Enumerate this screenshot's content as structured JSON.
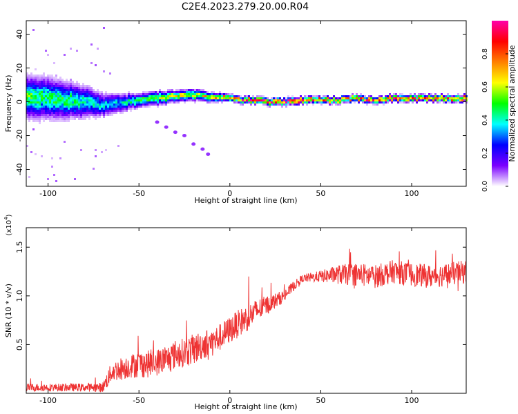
{
  "figure_title": "C2E4.2023.279.20.00.R04",
  "chart_data": [
    {
      "type": "heatmap",
      "title": "",
      "xlabel": "Height of straight line (km)",
      "ylabel": "Frequency (Hz)",
      "xlim": [
        -112,
        130
      ],
      "ylim": [
        -50,
        48
      ],
      "xticks": [
        -100,
        -50,
        0,
        50,
        100
      ],
      "yticks": [
        -40,
        -20,
        0,
        20,
        40
      ],
      "xtick_labels": [
        "-100",
        "-50",
        "0",
        "50",
        "100"
      ],
      "ytick_labels": [
        "-40",
        "-20",
        "0",
        "20",
        "40"
      ],
      "ridge": {
        "x": [
          -110,
          -100,
          -90,
          -80,
          -70,
          -60,
          -50,
          -40,
          -30,
          -20,
          -10,
          0,
          10,
          20,
          30,
          40,
          50,
          60,
          70,
          80,
          90,
          100,
          110,
          120,
          130
        ],
        "freq": [
          3,
          2,
          1,
          0,
          -2,
          -1,
          1,
          2,
          3,
          4,
          3,
          2,
          1,
          0,
          0,
          1,
          1,
          1,
          2,
          1,
          2,
          2,
          2,
          2,
          2
        ],
        "peak_amplitude": [
          0.5,
          0.45,
          0.45,
          0.4,
          0.35,
          0.35,
          0.45,
          0.55,
          0.6,
          0.6,
          0.65,
          0.75,
          0.85,
          0.9,
          0.9,
          0.85,
          0.75,
          0.7,
          0.75,
          0.8,
          0.8,
          0.75,
          0.75,
          0.8,
          0.8
        ],
        "width_hz": [
          18,
          18,
          16,
          14,
          10,
          8,
          6,
          6,
          5,
          5,
          4,
          3,
          3,
          3,
          3,
          3,
          3,
          3,
          3,
          3,
          3,
          3,
          3,
          3,
          3
        ]
      },
      "side_branch": {
        "x": [
          -40,
          -35,
          -30,
          -25,
          -20,
          -15,
          -12
        ],
        "freq": [
          -12,
          -15,
          -18,
          -20,
          -25,
          -28,
          -31
        ],
        "amplitude": 0.1
      },
      "colorbar": {
        "label": "Normalized spectral amplitude",
        "range": [
          0,
          1
        ],
        "ticks": [
          0.0,
          0.2,
          0.4,
          0.6,
          0.8
        ],
        "tick_labels": [
          "0.0",
          "0.2",
          "0.4",
          "0.6",
          "0.8"
        ],
        "colors": [
          "#ffffff",
          "#7b00ff",
          "#0000ff",
          "#00ffff",
          "#00ff00",
          "#ffff00",
          "#ff8000",
          "#ff0000",
          "#ff00aa"
        ]
      }
    },
    {
      "type": "line",
      "title": "",
      "xlabel": "Height of straight line (km)",
      "ylabel": "SNR (10 * v/v)",
      "y_multiplier": "(x10",
      "y_multiplier_exp": "4",
      "y_multiplier_close": ")",
      "xlim": [
        -112,
        130
      ],
      "ylim": [
        0,
        1.7
      ],
      "xticks": [
        -100,
        -50,
        0,
        50,
        100
      ],
      "yticks": [
        0.5,
        1.0,
        1.5
      ],
      "xtick_labels": [
        "-100",
        "-50",
        "0",
        "50",
        "100"
      ],
      "ytick_labels": [
        "0.5",
        "1.0",
        "1.5"
      ],
      "color": "#ee3333",
      "series": [
        {
          "name": "SNR",
          "x": [
            -112,
            -100,
            -90,
            -80,
            -70,
            -68,
            -65,
            -60,
            -55,
            -50,
            -45,
            -40,
            -35,
            -30,
            -25,
            -20,
            -15,
            -10,
            -5,
            0,
            5,
            10,
            15,
            20,
            25,
            30,
            35,
            40,
            50,
            60,
            70,
            80,
            90,
            100,
            110,
            120,
            130
          ],
          "values": [
            0.06,
            0.06,
            0.06,
            0.06,
            0.06,
            0.12,
            0.22,
            0.25,
            0.28,
            0.3,
            0.3,
            0.32,
            0.35,
            0.4,
            0.42,
            0.45,
            0.5,
            0.52,
            0.58,
            0.65,
            0.72,
            0.78,
            0.85,
            0.9,
            0.95,
            1.0,
            1.1,
            1.18,
            1.2,
            1.22,
            1.22,
            1.2,
            1.25,
            1.22,
            1.2,
            1.22,
            1.25
          ],
          "noise": [
            0.04,
            0.04,
            0.04,
            0.04,
            0.05,
            0.08,
            0.1,
            0.12,
            0.12,
            0.14,
            0.14,
            0.14,
            0.14,
            0.15,
            0.15,
            0.16,
            0.15,
            0.15,
            0.14,
            0.14,
            0.14,
            0.14,
            0.12,
            0.1,
            0.08,
            0.06,
            0.05,
            0.04,
            0.06,
            0.1,
            0.12,
            0.12,
            0.12,
            0.12,
            0.12,
            0.12,
            0.12
          ]
        }
      ]
    }
  ]
}
